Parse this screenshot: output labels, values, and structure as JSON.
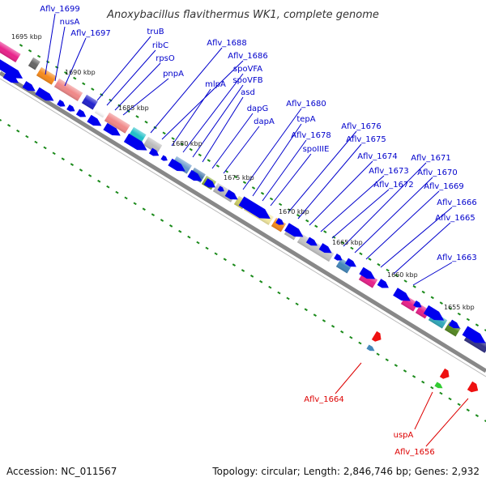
{
  "title": "Anoxybacillus flavithermus WK1, complete genome",
  "footer": {
    "accession": "Accession: NC_011567",
    "summary": "Topology: circular; Length: 2,846,746 bp; Genes: 2,932"
  },
  "colors": {
    "label_blue": "#0000cc",
    "label_red": "#dd0000",
    "gene_blue": "#0000ee",
    "backbone": "#888888",
    "tick_green": "#1a8a1a"
  },
  "kbp_markers": [
    {
      "label": "1695 kbp"
    },
    {
      "label": "1690 kbp"
    },
    {
      "label": "1685 kbp"
    },
    {
      "label": "1680 kbp"
    },
    {
      "label": "1675 kbp"
    },
    {
      "label": "1670 kbp"
    },
    {
      "label": "1665 kbp"
    },
    {
      "label": "1660 kbp"
    },
    {
      "label": "1655 kbp"
    }
  ],
  "top_labels": [
    {
      "name": "Aflv_1699"
    },
    {
      "name": "nusA"
    },
    {
      "name": "Aflv_1697"
    },
    {
      "name": "truB"
    },
    {
      "name": "ribC"
    },
    {
      "name": "rpsO"
    },
    {
      "name": "pnpA"
    },
    {
      "name": "Aflv_1688"
    },
    {
      "name": "Aflv_1686"
    },
    {
      "name": "mlpA"
    },
    {
      "name": "spoVFA"
    },
    {
      "name": "spoVFB"
    },
    {
      "name": "asd"
    },
    {
      "name": "dapG"
    },
    {
      "name": "dapA"
    },
    {
      "name": "Aflv_1680"
    },
    {
      "name": "tepA"
    },
    {
      "name": "Aflv_1678"
    },
    {
      "name": "spoIIIE"
    },
    {
      "name": "Aflv_1676"
    },
    {
      "name": "Aflv_1675"
    },
    {
      "name": "Aflv_1674"
    },
    {
      "name": "Aflv_1673"
    },
    {
      "name": "Aflv_1672"
    },
    {
      "name": "Aflv_1671"
    },
    {
      "name": "Aflv_1670"
    },
    {
      "name": "Aflv_1669"
    },
    {
      "name": "Aflv_1666"
    },
    {
      "name": "Aflv_1665"
    },
    {
      "name": "Aflv_1663"
    }
  ],
  "bottom_labels": [
    {
      "name": "Aflv_1664"
    },
    {
      "name": "uspA"
    },
    {
      "name": "Aflv_1656"
    }
  ]
}
